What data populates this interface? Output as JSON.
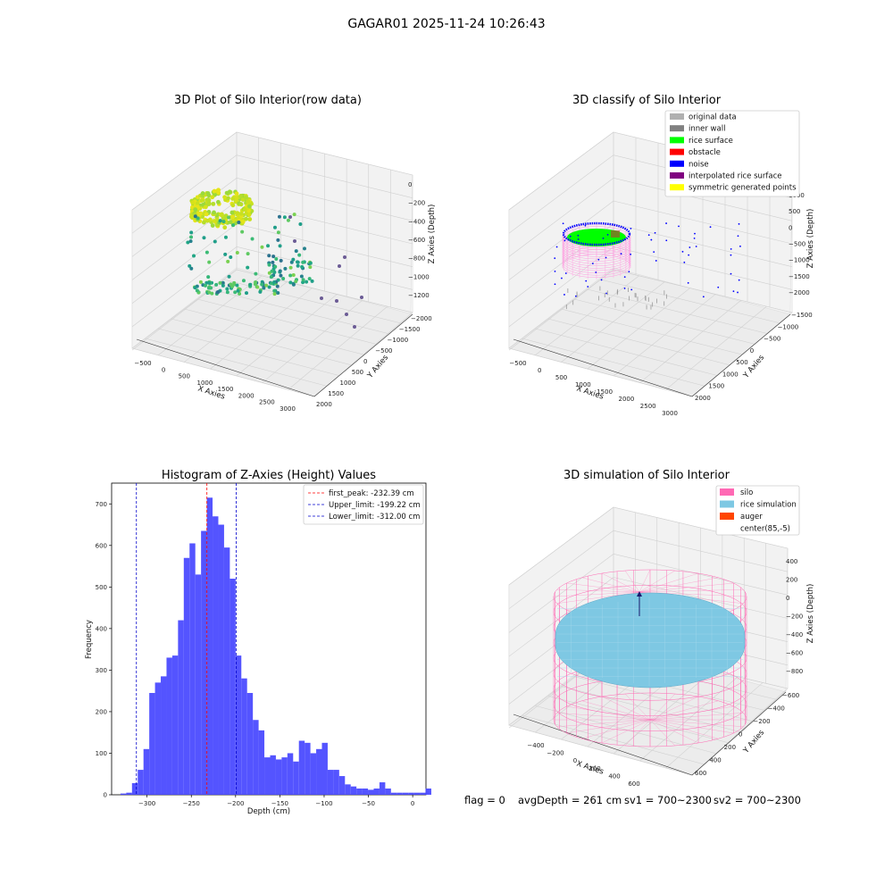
{
  "suptitle": "GAGAR01 2025-11-24 10:26:43",
  "colors": {
    "hist_bar": "#4b4bff",
    "first_peak": "#ff0000",
    "limits": "#0000cc",
    "silo": "#ff69b4",
    "rice_sim": "#7ec8e3",
    "auger": "#ff4500"
  },
  "panels": {
    "raw": {
      "title": "3D Plot of Silo Interior(row data)",
      "xlabel": "X Axies",
      "ylabel": "Y Axies",
      "zlabel": "Z Axies (Depth)",
      "xticks": [
        "−500",
        "0",
        "500",
        "1000",
        "1500",
        "2000",
        "2500",
        "3000"
      ],
      "yticks": [
        "2000",
        "1500",
        "1000",
        "500",
        "0",
        "−500",
        "−1000",
        "−1500",
        "−2000"
      ],
      "zticks": [
        "0",
        "−200",
        "−400",
        "−600",
        "−800",
        "−1000",
        "−1200"
      ]
    },
    "classify": {
      "title": "3D classify of Silo Interior",
      "xlabel": "X Axies",
      "ylabel": "Y Axies",
      "zlabel": "Z Axies (Depth)",
      "xticks": [
        "−500",
        "0",
        "500",
        "1000",
        "1500",
        "2000",
        "2500",
        "3000"
      ],
      "yticks": [
        "2000",
        "1500",
        "1000",
        "500",
        "0",
        "−500",
        "−1000",
        "−1500"
      ],
      "zticks": [
        "1000",
        "500",
        "0",
        "−500",
        "−1000",
        "−1500",
        "−2000"
      ],
      "legend": [
        {
          "label": "original data",
          "color": "#b0b0b0"
        },
        {
          "label": "inner wall",
          "color": "#808080"
        },
        {
          "label": "rice surface",
          "color": "#00ff00"
        },
        {
          "label": "obstacle",
          "color": "#ff0000"
        },
        {
          "label": "noise",
          "color": "#0000ff"
        },
        {
          "label": "interpolated rice surface",
          "color": "#800080"
        },
        {
          "label": "symmetric generated points",
          "color": "#ffff00"
        }
      ]
    },
    "simulation": {
      "title": "3D simulation of Silo Interior",
      "xlabel": "X Axies",
      "ylabel": "Y Axies",
      "zlabel": "Z Axies (Depth)",
      "xticks": [
        "−400",
        "−200",
        "0",
        "200",
        "400",
        "600"
      ],
      "yticks": [
        "600",
        "400",
        "200",
        "0",
        "−200",
        "−400",
        "−600"
      ],
      "zticks": [
        "400",
        "200",
        "0",
        "−200",
        "−400",
        "−600",
        "−800"
      ],
      "legend": [
        {
          "label": "silo",
          "color": "#ff69b4"
        },
        {
          "label": "rice simulation",
          "color": "#7ec8e3"
        },
        {
          "label": "auger",
          "color": "#ff4500"
        },
        {
          "label": "center(85,-5)",
          "color": null
        }
      ]
    }
  },
  "info_line": {
    "flag": "flag = 0",
    "avg": "avgDepth = 261 cm",
    "sv1": "sv1 = 700~2300",
    "sv2": "sv2 = 700~2300"
  },
  "chart_data": [
    {
      "type": "bar",
      "title": "Histogram of Z-Axies (Height) Values",
      "xlabel": "Depth (cm)",
      "ylabel": "Frequency",
      "xlim": [
        -340,
        15
      ],
      "ylim": [
        0,
        750
      ],
      "xticks": [
        -300,
        -250,
        -200,
        -150,
        -100,
        -50,
        0
      ],
      "yticks": [
        0,
        100,
        200,
        300,
        400,
        500,
        600,
        700
      ],
      "bin_width": 6.5,
      "bin_start": -330,
      "values": [
        3,
        5,
        28,
        60,
        110,
        245,
        270,
        285,
        330,
        335,
        420,
        570,
        605,
        530,
        635,
        715,
        670,
        650,
        595,
        520,
        335,
        280,
        245,
        180,
        155,
        90,
        95,
        85,
        90,
        100,
        80,
        130,
        125,
        100,
        110,
        125,
        60,
        60,
        45,
        25,
        20,
        15,
        15,
        12,
        15,
        30,
        15,
        5,
        5,
        5,
        5,
        5,
        5,
        15
      ],
      "lines": [
        {
          "label": "first_peak: -232.39 cm",
          "x": -232.39,
          "color": "#ff0000"
        },
        {
          "label": "Upper_limit: -199.22 cm",
          "x": -199.22,
          "color": "#0000cc"
        },
        {
          "label": "Lower_limit: -312.00 cm",
          "x": -312.0,
          "color": "#0000cc"
        }
      ]
    }
  ]
}
